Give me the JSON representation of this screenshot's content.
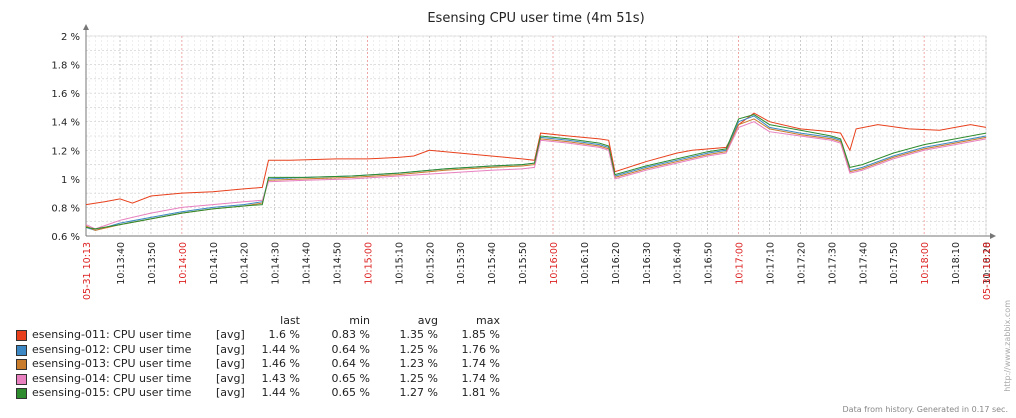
{
  "chart_data": {
    "type": "line",
    "title": "Esensing CPU user time (4m 51s)",
    "y_ticks": [
      "0.6 %",
      "0.8 %",
      "1 %",
      "1.2 %",
      "1.4 %",
      "1.6 %",
      "1.8 %",
      "2 %"
    ],
    "ylim": [
      0.6,
      2.0
    ],
    "x_start_label": "05-31 10:13",
    "x_end_label": "05-31 10:18",
    "x_tick_labels": [
      "10:13:40",
      "10:13:50",
      "10:14:00",
      "10:14:10",
      "10:14:20",
      "10:14:30",
      "10:14:40",
      "10:14:50",
      "10:15:00",
      "10:15:10",
      "10:15:20",
      "10:15:30",
      "10:15:40",
      "10:15:50",
      "10:16:00",
      "10:16:10",
      "10:16:20",
      "10:16:30",
      "10:16:40",
      "10:16:50",
      "10:17:00",
      "10:17:10",
      "10:17:20",
      "10:17:30",
      "10:17:40",
      "10:17:50",
      "10:18:00",
      "10:18:10",
      "10:18:20"
    ],
    "x_tick_highlight": [
      "10:14:00",
      "10:15:00",
      "10:16:00",
      "10:17:00",
      "10:18:00"
    ],
    "x_seconds_range": [
      809,
      1100
    ],
    "grid": true,
    "series": [
      {
        "name": "esensing-011: CPU user time",
        "color": "#e8401c",
        "points": [
          [
            809,
            0.82
          ],
          [
            815,
            0.84
          ],
          [
            820,
            0.86
          ],
          [
            824,
            0.83
          ],
          [
            830,
            0.88
          ],
          [
            840,
            0.9
          ],
          [
            850,
            0.91
          ],
          [
            860,
            0.93
          ],
          [
            866,
            0.94
          ],
          [
            868,
            1.13
          ],
          [
            875,
            1.13
          ],
          [
            890,
            1.14
          ],
          [
            900,
            1.14
          ],
          [
            910,
            1.15
          ],
          [
            915,
            1.16
          ],
          [
            920,
            1.2
          ],
          [
            930,
            1.18
          ],
          [
            940,
            1.16
          ],
          [
            950,
            1.14
          ],
          [
            954,
            1.13
          ],
          [
            956,
            1.32
          ],
          [
            965,
            1.3
          ],
          [
            975,
            1.28
          ],
          [
            978,
            1.27
          ],
          [
            980,
            1.05
          ],
          [
            990,
            1.12
          ],
          [
            1000,
            1.18
          ],
          [
            1005,
            1.2
          ],
          [
            1016,
            1.22
          ],
          [
            1020,
            1.38
          ],
          [
            1025,
            1.46
          ],
          [
            1030,
            1.4
          ],
          [
            1040,
            1.35
          ],
          [
            1050,
            1.33
          ],
          [
            1053,
            1.32
          ],
          [
            1056,
            1.2
          ],
          [
            1058,
            1.35
          ],
          [
            1065,
            1.38
          ],
          [
            1075,
            1.35
          ],
          [
            1085,
            1.34
          ],
          [
            1090,
            1.36
          ],
          [
            1095,
            1.38
          ],
          [
            1100,
            1.36
          ]
        ]
      },
      {
        "name": "esensing-012: CPU user time",
        "color": "#3b88c4",
        "points": [
          [
            809,
            0.66
          ],
          [
            812,
            0.64
          ],
          [
            820,
            0.69
          ],
          [
            830,
            0.73
          ],
          [
            840,
            0.77
          ],
          [
            850,
            0.8
          ],
          [
            860,
            0.82
          ],
          [
            866,
            0.84
          ],
          [
            868,
            1.0
          ],
          [
            880,
            1.01
          ],
          [
            895,
            1.02
          ],
          [
            910,
            1.04
          ],
          [
            925,
            1.07
          ],
          [
            940,
            1.09
          ],
          [
            950,
            1.1
          ],
          [
            954,
            1.11
          ],
          [
            956,
            1.29
          ],
          [
            965,
            1.27
          ],
          [
            975,
            1.24
          ],
          [
            978,
            1.22
          ],
          [
            980,
            1.02
          ],
          [
            990,
            1.08
          ],
          [
            1000,
            1.13
          ],
          [
            1010,
            1.18
          ],
          [
            1016,
            1.2
          ],
          [
            1020,
            1.4
          ],
          [
            1025,
            1.44
          ],
          [
            1030,
            1.36
          ],
          [
            1040,
            1.32
          ],
          [
            1050,
            1.29
          ],
          [
            1053,
            1.27
          ],
          [
            1056,
            1.06
          ],
          [
            1060,
            1.08
          ],
          [
            1070,
            1.16
          ],
          [
            1080,
            1.22
          ],
          [
            1090,
            1.26
          ],
          [
            1100,
            1.3
          ]
        ]
      },
      {
        "name": "esensing-013: CPU user time",
        "color": "#c87c2c",
        "points": [
          [
            809,
            0.67
          ],
          [
            812,
            0.64
          ],
          [
            820,
            0.68
          ],
          [
            830,
            0.72
          ],
          [
            840,
            0.76
          ],
          [
            850,
            0.79
          ],
          [
            860,
            0.81
          ],
          [
            866,
            0.83
          ],
          [
            868,
            0.99
          ],
          [
            880,
            1.0
          ],
          [
            895,
            1.01
          ],
          [
            910,
            1.03
          ],
          [
            925,
            1.06
          ],
          [
            940,
            1.08
          ],
          [
            950,
            1.09
          ],
          [
            954,
            1.1
          ],
          [
            956,
            1.28
          ],
          [
            965,
            1.26
          ],
          [
            975,
            1.23
          ],
          [
            978,
            1.21
          ],
          [
            980,
            1.01
          ],
          [
            990,
            1.07
          ],
          [
            1000,
            1.12
          ],
          [
            1010,
            1.17
          ],
          [
            1016,
            1.19
          ],
          [
            1020,
            1.38
          ],
          [
            1025,
            1.42
          ],
          [
            1030,
            1.35
          ],
          [
            1040,
            1.31
          ],
          [
            1050,
            1.28
          ],
          [
            1053,
            1.26
          ],
          [
            1056,
            1.05
          ],
          [
            1060,
            1.07
          ],
          [
            1070,
            1.15
          ],
          [
            1080,
            1.21
          ],
          [
            1090,
            1.25
          ],
          [
            1100,
            1.29
          ]
        ]
      },
      {
        "name": "esensing-014: CPU user time",
        "color": "#e880c0",
        "points": [
          [
            809,
            0.68
          ],
          [
            812,
            0.65
          ],
          [
            820,
            0.71
          ],
          [
            830,
            0.76
          ],
          [
            840,
            0.8
          ],
          [
            850,
            0.82
          ],
          [
            860,
            0.84
          ],
          [
            866,
            0.85
          ],
          [
            868,
            0.98
          ],
          [
            880,
            0.99
          ],
          [
            895,
            1.0
          ],
          [
            910,
            1.02
          ],
          [
            925,
            1.04
          ],
          [
            940,
            1.06
          ],
          [
            950,
            1.07
          ],
          [
            954,
            1.08
          ],
          [
            956,
            1.27
          ],
          [
            965,
            1.25
          ],
          [
            975,
            1.22
          ],
          [
            978,
            1.2
          ],
          [
            980,
            1.0
          ],
          [
            990,
            1.06
          ],
          [
            1000,
            1.11
          ],
          [
            1010,
            1.16
          ],
          [
            1016,
            1.18
          ],
          [
            1020,
            1.36
          ],
          [
            1025,
            1.4
          ],
          [
            1030,
            1.33
          ],
          [
            1040,
            1.3
          ],
          [
            1050,
            1.27
          ],
          [
            1053,
            1.25
          ],
          [
            1056,
            1.04
          ],
          [
            1060,
            1.06
          ],
          [
            1070,
            1.14
          ],
          [
            1080,
            1.2
          ],
          [
            1090,
            1.24
          ],
          [
            1100,
            1.28
          ]
        ]
      },
      {
        "name": "esensing-015: CPU user time",
        "color": "#2e8c2e",
        "points": [
          [
            809,
            0.66
          ],
          [
            812,
            0.65
          ],
          [
            820,
            0.68
          ],
          [
            830,
            0.72
          ],
          [
            840,
            0.76
          ],
          [
            850,
            0.79
          ],
          [
            860,
            0.81
          ],
          [
            866,
            0.82
          ],
          [
            868,
            1.01
          ],
          [
            880,
            1.01
          ],
          [
            895,
            1.02
          ],
          [
            910,
            1.04
          ],
          [
            925,
            1.07
          ],
          [
            940,
            1.09
          ],
          [
            950,
            1.1
          ],
          [
            954,
            1.11
          ],
          [
            956,
            1.3
          ],
          [
            965,
            1.28
          ],
          [
            975,
            1.25
          ],
          [
            978,
            1.23
          ],
          [
            980,
            1.03
          ],
          [
            990,
            1.09
          ],
          [
            1000,
            1.14
          ],
          [
            1010,
            1.19
          ],
          [
            1016,
            1.21
          ],
          [
            1020,
            1.42
          ],
          [
            1025,
            1.45
          ],
          [
            1030,
            1.38
          ],
          [
            1040,
            1.34
          ],
          [
            1050,
            1.3
          ],
          [
            1053,
            1.28
          ],
          [
            1056,
            1.08
          ],
          [
            1060,
            1.1
          ],
          [
            1070,
            1.18
          ],
          [
            1080,
            1.24
          ],
          [
            1090,
            1.28
          ],
          [
            1100,
            1.32
          ]
        ]
      }
    ]
  },
  "legend": {
    "headers": {
      "last": "last",
      "min": "min",
      "avg": "avg",
      "max": "max"
    },
    "func": "[avg]",
    "rows": [
      {
        "name": "esensing-011: CPU user time",
        "color": "#e8401c",
        "last": "1.6 %",
        "min": "0.83 %",
        "avg": "1.35 %",
        "max": "1.85 %"
      },
      {
        "name": "esensing-012: CPU user time",
        "color": "#3b88c4",
        "last": "1.44 %",
        "min": "0.64 %",
        "avg": "1.25 %",
        "max": "1.76 %"
      },
      {
        "name": "esensing-013: CPU user time",
        "color": "#c87c2c",
        "last": "1.46 %",
        "min": "0.64 %",
        "avg": "1.23 %",
        "max": "1.74 %"
      },
      {
        "name": "esensing-014: CPU user time",
        "color": "#e880c0",
        "last": "1.43 %",
        "min": "0.65 %",
        "avg": "1.25 %",
        "max": "1.74 %"
      },
      {
        "name": "esensing-015: CPU user time",
        "color": "#2e8c2e",
        "last": "1.44 %",
        "min": "0.65 %",
        "avg": "1.27 %",
        "max": "1.81 %"
      }
    ]
  },
  "footer": "Data from history. Generated in 0.17 sec.",
  "watermark": "http://www.zabbix.com"
}
